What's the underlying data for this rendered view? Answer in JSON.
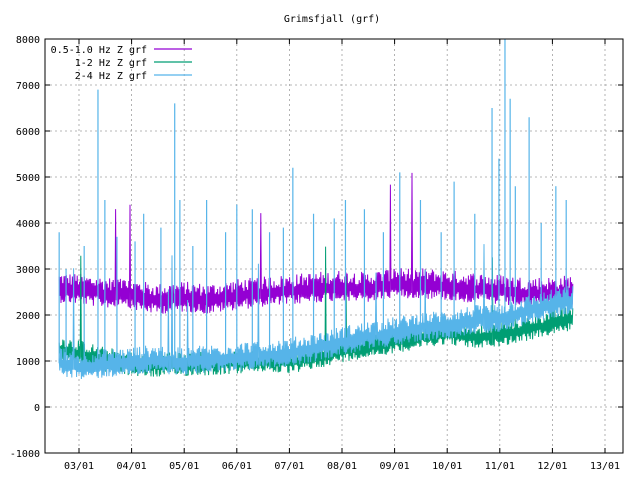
{
  "chart_data": {
    "type": "line",
    "title": "Grimsfjall (grf)",
    "xlabel": "",
    "ylabel": "",
    "ylim": [
      -1000,
      8000
    ],
    "yticks": [
      -1000,
      0,
      1000,
      2000,
      3000,
      4000,
      5000,
      6000,
      7000,
      8000
    ],
    "xticks": [
      "03/01",
      "04/01",
      "05/01",
      "06/01",
      "07/01",
      "08/01",
      "09/01",
      "10/01",
      "11/01",
      "12/01",
      "13/01"
    ],
    "grid": true,
    "legend_position": "top-left",
    "series": [
      {
        "name": "0.5-1.0 Hz Z grf",
        "color": "#9400d3",
        "baseline": [
          [
            "02/20",
            2550
          ],
          [
            "03/01",
            2520
          ],
          [
            "03/15",
            2450
          ],
          [
            "04/01",
            2400
          ],
          [
            "04/15",
            2300
          ],
          [
            "05/01",
            2350
          ],
          [
            "05/15",
            2300
          ],
          [
            "06/01",
            2400
          ],
          [
            "06/15",
            2450
          ],
          [
            "07/01",
            2500
          ],
          [
            "07/15",
            2550
          ],
          [
            "08/01",
            2600
          ],
          [
            "08/15",
            2550
          ],
          [
            "09/01",
            2650
          ],
          [
            "09/15",
            2650
          ],
          [
            "10/01",
            2600
          ],
          [
            "10/15",
            2550
          ],
          [
            "11/01",
            2500
          ],
          [
            "11/15",
            2450
          ],
          [
            "12/01",
            2450
          ],
          [
            "12/13",
            2500
          ]
        ]
      },
      {
        "name": "1-2 Hz Z grf",
        "color": "#009e73",
        "baseline": [
          [
            "02/20",
            1250
          ],
          [
            "03/01",
            1150
          ],
          [
            "03/15",
            1000
          ],
          [
            "04/01",
            900
          ],
          [
            "04/15",
            880
          ],
          [
            "05/01",
            900
          ],
          [
            "05/15",
            920
          ],
          [
            "06/01",
            950
          ],
          [
            "06/15",
            1000
          ],
          [
            "07/01",
            950
          ],
          [
            "07/15",
            1050
          ],
          [
            "08/01",
            1200
          ],
          [
            "08/15",
            1300
          ],
          [
            "09/01",
            1400
          ],
          [
            "09/15",
            1500
          ],
          [
            "10/01",
            1600
          ],
          [
            "10/15",
            1500
          ],
          [
            "11/01",
            1550
          ],
          [
            "11/15",
            1650
          ],
          [
            "12/01",
            1800
          ],
          [
            "12/13",
            1900
          ]
        ]
      },
      {
        "name": "2-4 Hz Z grf",
        "color": "#56b4e9",
        "baseline": [
          [
            "02/20",
            950
          ],
          [
            "03/01",
            850
          ],
          [
            "03/15",
            900
          ],
          [
            "04/01",
            950
          ],
          [
            "04/15",
            1000
          ],
          [
            "05/01",
            950
          ],
          [
            "05/15",
            1000
          ],
          [
            "06/01",
            1050
          ],
          [
            "06/15",
            1100
          ],
          [
            "07/01",
            1150
          ],
          [
            "07/15",
            1250
          ],
          [
            "08/01",
            1400
          ],
          [
            "08/15",
            1500
          ],
          [
            "09/01",
            1600
          ],
          [
            "09/15",
            1700
          ],
          [
            "10/01",
            1750
          ],
          [
            "10/15",
            1850
          ],
          [
            "11/01",
            1900
          ],
          [
            "11/15",
            2050
          ],
          [
            "12/01",
            2200
          ],
          [
            "12/13",
            2300
          ]
        ],
        "peaks": [
          [
            "02/20",
            3800
          ],
          [
            "02/24",
            3000
          ],
          [
            "03/04",
            3500
          ],
          [
            "03/12",
            6900
          ],
          [
            "03/16",
            4500
          ],
          [
            "03/23",
            3700
          ],
          [
            "04/03",
            3600
          ],
          [
            "04/08",
            4200
          ],
          [
            "04/18",
            3900
          ],
          [
            "04/26",
            6600
          ],
          [
            "04/29",
            4500
          ],
          [
            "05/06",
            3500
          ],
          [
            "05/14",
            4500
          ],
          [
            "05/25",
            3800
          ],
          [
            "06/01",
            4400
          ],
          [
            "06/10",
            4300
          ],
          [
            "06/20",
            3800
          ],
          [
            "06/28",
            3900
          ],
          [
            "07/03",
            5200
          ],
          [
            "07/15",
            4200
          ],
          [
            "07/27",
            4100
          ],
          [
            "08/03",
            4500
          ],
          [
            "08/14",
            4300
          ],
          [
            "08/25",
            3800
          ],
          [
            "09/04",
            5100
          ],
          [
            "09/16",
            4500
          ],
          [
            "09/28",
            3800
          ],
          [
            "10/05",
            4900
          ],
          [
            "10/17",
            4200
          ],
          [
            "10/27",
            6500
          ],
          [
            "10/31",
            5400
          ],
          [
            "11/04",
            8000
          ],
          [
            "11/07",
            6700
          ],
          [
            "11/10",
            4800
          ],
          [
            "11/18",
            6300
          ],
          [
            "11/25",
            4000
          ],
          [
            "12/03",
            4800
          ],
          [
            "12/09",
            4500
          ]
        ]
      }
    ]
  }
}
